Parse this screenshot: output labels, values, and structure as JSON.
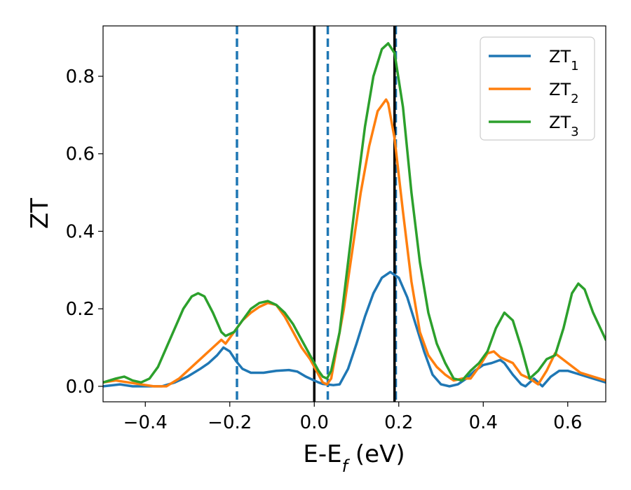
{
  "chart_data": {
    "type": "line",
    "xlabel": "E-E_f (eV)",
    "ylabel": "ZT",
    "xlim": [
      -0.5,
      0.69
    ],
    "ylim": [
      -0.04,
      0.93
    ],
    "xticks": [
      -0.4,
      -0.2,
      0.0,
      0.2,
      0.4,
      0.6
    ],
    "xtick_labels": [
      "−0.4",
      "−0.2",
      "0.0",
      "0.2",
      "0.4",
      "0.6"
    ],
    "yticks": [
      0.0,
      0.2,
      0.4,
      0.6,
      0.8
    ],
    "ytick_labels": [
      "0.0",
      "0.2",
      "0.4",
      "0.6",
      "0.8"
    ],
    "grid": false,
    "legend": "top-right",
    "vlines": [
      {
        "x": -0.183,
        "style": "dashed",
        "color": "#1f77b4"
      },
      {
        "x": 0.032,
        "style": "dashed",
        "color": "#1f77b4"
      },
      {
        "x": 0.193,
        "style": "dashed",
        "color": "#1f77b4"
      },
      {
        "x": 0.0,
        "style": "solid",
        "color": "#000000"
      },
      {
        "x": 0.19,
        "style": "solid",
        "color": "#000000"
      }
    ],
    "series": [
      {
        "name": "ZT1",
        "label_main": "ZT",
        "label_sub": "1",
        "color": "#1f77b4",
        "x": [
          -0.5,
          -0.46,
          -0.43,
          -0.4,
          -0.36,
          -0.33,
          -0.3,
          -0.27,
          -0.25,
          -0.23,
          -0.215,
          -0.2,
          -0.185,
          -0.17,
          -0.15,
          -0.12,
          -0.09,
          -0.06,
          -0.04,
          -0.02,
          0.0,
          0.01,
          0.02,
          0.03,
          0.045,
          0.06,
          0.08,
          0.1,
          0.12,
          0.14,
          0.16,
          0.18,
          0.2,
          0.22,
          0.24,
          0.26,
          0.28,
          0.3,
          0.32,
          0.34,
          0.36,
          0.38,
          0.4,
          0.42,
          0.44,
          0.45,
          0.47,
          0.49,
          0.5,
          0.52,
          0.54,
          0.56,
          0.58,
          0.6,
          0.63,
          0.66,
          0.69
        ],
        "y": [
          0.0,
          0.005,
          0.0,
          0.0,
          0.0,
          0.01,
          0.025,
          0.045,
          0.06,
          0.08,
          0.1,
          0.09,
          0.065,
          0.045,
          0.035,
          0.035,
          0.04,
          0.042,
          0.038,
          0.025,
          0.015,
          0.01,
          0.006,
          0.005,
          0.003,
          0.005,
          0.045,
          0.11,
          0.18,
          0.24,
          0.28,
          0.295,
          0.28,
          0.23,
          0.16,
          0.09,
          0.03,
          0.005,
          0.0,
          0.005,
          0.02,
          0.04,
          0.055,
          0.06,
          0.068,
          0.06,
          0.03,
          0.005,
          0.0,
          0.02,
          0.0,
          0.025,
          0.04,
          0.04,
          0.03,
          0.02,
          0.01
        ]
      },
      {
        "name": "ZT2",
        "label_main": "ZT",
        "label_sub": "2",
        "color": "#ff7f0e",
        "x": [
          -0.5,
          -0.47,
          -0.44,
          -0.41,
          -0.38,
          -0.35,
          -0.32,
          -0.29,
          -0.26,
          -0.24,
          -0.22,
          -0.21,
          -0.19,
          -0.17,
          -0.15,
          -0.13,
          -0.11,
          -0.09,
          -0.07,
          -0.05,
          -0.03,
          -0.01,
          0.0,
          0.01,
          0.02,
          0.03,
          0.04,
          0.05,
          0.07,
          0.09,
          0.11,
          0.13,
          0.15,
          0.17,
          0.175,
          0.19,
          0.21,
          0.23,
          0.25,
          0.27,
          0.29,
          0.31,
          0.33,
          0.35,
          0.37,
          0.39,
          0.41,
          0.425,
          0.44,
          0.45,
          0.47,
          0.49,
          0.51,
          0.53,
          0.55,
          0.57,
          0.6,
          0.63,
          0.66,
          0.69
        ],
        "y": [
          0.01,
          0.015,
          0.01,
          0.005,
          0.0,
          0.0,
          0.02,
          0.05,
          0.08,
          0.1,
          0.12,
          0.11,
          0.14,
          0.17,
          0.19,
          0.205,
          0.215,
          0.21,
          0.18,
          0.14,
          0.1,
          0.07,
          0.05,
          0.03,
          0.01,
          0.005,
          0.02,
          0.08,
          0.2,
          0.35,
          0.5,
          0.62,
          0.71,
          0.74,
          0.73,
          0.64,
          0.45,
          0.27,
          0.14,
          0.08,
          0.05,
          0.03,
          0.015,
          0.02,
          0.02,
          0.05,
          0.085,
          0.09,
          0.075,
          0.07,
          0.06,
          0.03,
          0.02,
          0.005,
          0.04,
          0.085,
          0.06,
          0.035,
          0.025,
          0.015
        ]
      },
      {
        "name": "ZT3",
        "label_main": "ZT",
        "label_sub": "3",
        "color": "#2ca02c",
        "x": [
          -0.5,
          -0.47,
          -0.45,
          -0.43,
          -0.41,
          -0.39,
          -0.37,
          -0.35,
          -0.33,
          -0.31,
          -0.29,
          -0.275,
          -0.26,
          -0.24,
          -0.22,
          -0.21,
          -0.19,
          -0.17,
          -0.15,
          -0.13,
          -0.11,
          -0.09,
          -0.07,
          -0.05,
          -0.03,
          -0.01,
          0.0,
          0.01,
          0.02,
          0.03,
          0.04,
          0.06,
          0.08,
          0.1,
          0.12,
          0.14,
          0.16,
          0.175,
          0.19,
          0.21,
          0.23,
          0.25,
          0.27,
          0.29,
          0.31,
          0.33,
          0.35,
          0.37,
          0.39,
          0.41,
          0.43,
          0.45,
          0.47,
          0.49,
          0.51,
          0.53,
          0.55,
          0.57,
          0.59,
          0.61,
          0.625,
          0.64,
          0.66,
          0.69
        ],
        "y": [
          0.01,
          0.02,
          0.025,
          0.015,
          0.01,
          0.02,
          0.05,
          0.1,
          0.15,
          0.2,
          0.232,
          0.24,
          0.232,
          0.19,
          0.14,
          0.13,
          0.14,
          0.17,
          0.2,
          0.215,
          0.22,
          0.21,
          0.19,
          0.16,
          0.12,
          0.08,
          0.06,
          0.04,
          0.025,
          0.02,
          0.04,
          0.14,
          0.32,
          0.5,
          0.67,
          0.8,
          0.87,
          0.885,
          0.86,
          0.72,
          0.5,
          0.32,
          0.19,
          0.11,
          0.06,
          0.02,
          0.015,
          0.04,
          0.06,
          0.09,
          0.15,
          0.19,
          0.17,
          0.1,
          0.02,
          0.04,
          0.07,
          0.08,
          0.15,
          0.24,
          0.265,
          0.25,
          0.19,
          0.12
        ]
      }
    ]
  }
}
